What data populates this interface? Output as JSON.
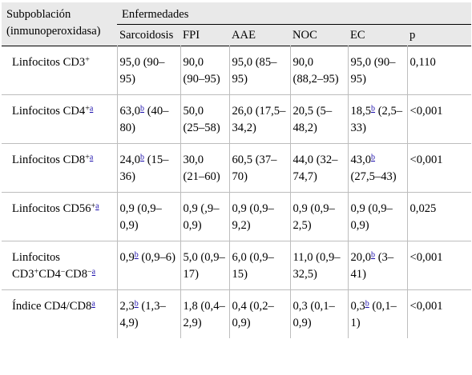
{
  "header": {
    "subpop_label_1": "Subpoblación",
    "subpop_label_2": "(inmunoperoxidasa)",
    "group_label": "Enfermedades",
    "columns": [
      "Sarcoidosis",
      "FPI",
      "AAE",
      "NOC",
      "EC",
      "p"
    ]
  },
  "rows": [
    {
      "label": {
        "pre": "Linfocitos CD3",
        "sup": "+"
      },
      "sarcoidosis": {
        "main": "95,0 (90–95)"
      },
      "fpi": {
        "main": "90,0 (90–95)"
      },
      "aae": {
        "main": "95,0 (85–95)"
      },
      "noc": {
        "main": "90,0 (88,2–95)"
      },
      "ec": {
        "main": "95,0 (90–95)"
      },
      "p": "0,110"
    },
    {
      "label": {
        "pre": "Linfocitos CD4",
        "sup": "+",
        "note": "a"
      },
      "sarcoidosis": {
        "pre": "63,0",
        "note": "b",
        "post": " (40–80)"
      },
      "fpi": {
        "main": "50,0 (25–58)"
      },
      "aae": {
        "main": "26,0 (17,5–34,2)"
      },
      "noc": {
        "main": "20,5 (5–48,2)"
      },
      "ec": {
        "pre": "18,5",
        "note": "b",
        "post": " (2,5–33)"
      },
      "p": "<0,001"
    },
    {
      "label": {
        "pre": "Linfocitos CD8",
        "sup": "+",
        "note": "a"
      },
      "sarcoidosis": {
        "pre": "24,0",
        "note": "b",
        "post": " (15–36)"
      },
      "fpi": {
        "main": "30,0 (21–60)"
      },
      "aae": {
        "main": "60,5 (37–70)"
      },
      "noc": {
        "main": "44,0 (32–74,7)"
      },
      "ec": {
        "pre": "43,0",
        "note": "b",
        "post": " (27,5–43)"
      },
      "p": "<0,001"
    },
    {
      "label": {
        "pre": "Linfocitos CD56",
        "sup": "+",
        "note": "a"
      },
      "sarcoidosis": {
        "main": "0,9 (0,9–0,9)"
      },
      "fpi": {
        "main": "0,9 (,9–0,9)"
      },
      "aae": {
        "main": "0,9 (0,9–9,2)"
      },
      "noc": {
        "main": "0,9 (0,9–2,5)"
      },
      "ec": {
        "main": "0,9 (0,9–0,9)"
      },
      "p": "0,025"
    },
    {
      "label": {
        "line1": "Linfocitos",
        "l2a": "CD3",
        "s1": "+",
        "l2b": "CD4",
        "s2": "−",
        "l2c": "CD8",
        "s3": "−",
        "note": "a"
      },
      "sarcoidosis": {
        "pre": "0,9",
        "note": "b",
        "post": " (0,9–6)"
      },
      "fpi": {
        "main": "5,0 (0,9–17)"
      },
      "aae": {
        "main": "6,0 (0,9–15)"
      },
      "noc": {
        "main": "11,0 (0,9–32,5)"
      },
      "ec": {
        "pre": "20,0",
        "note": "b",
        "post": " (3–41)"
      },
      "p": "<0,001"
    },
    {
      "label": {
        "pre": "Índice CD4/CD8",
        "note": "a"
      },
      "sarcoidosis": {
        "pre": "2,3",
        "note": "b",
        "post": " (1,3–4,9)"
      },
      "fpi": {
        "main": "1,8 (0,4–2,9)"
      },
      "aae": {
        "main": "0,4 (0,2–0,9)"
      },
      "noc": {
        "main": "0,3 (0,1–0,9)"
      },
      "ec": {
        "pre": "0,3",
        "note": "b",
        "post": " (0,1–1)"
      },
      "p": "<0,001"
    }
  ]
}
